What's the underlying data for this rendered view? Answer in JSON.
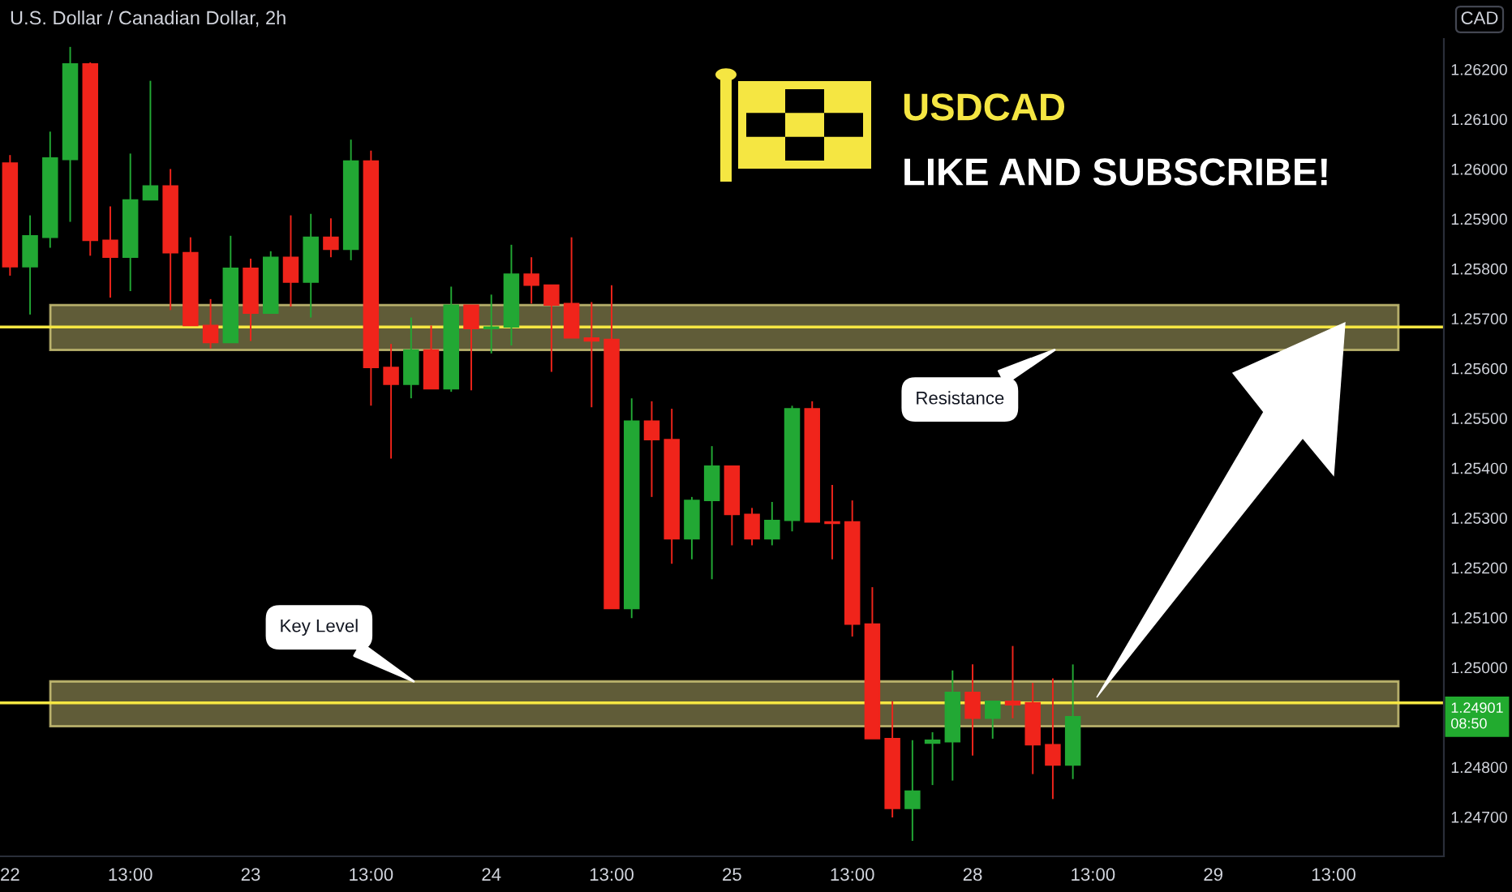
{
  "chart_data": {
    "type": "candlestick",
    "title": "U.S. Dollar / Canadian Dollar, 2h",
    "subtitle": "USDCAD",
    "ylabel": "CAD",
    "categories": [
      "22",
      null,
      null,
      null,
      null,
      null,
      "13:00",
      null,
      null,
      null,
      null,
      null,
      "23",
      null,
      null,
      null,
      null,
      null,
      "13:00",
      null,
      null,
      null,
      null,
      null,
      "24",
      null,
      null,
      null,
      null,
      null,
      "13:00",
      null,
      null,
      null,
      null,
      null,
      "25",
      null,
      null,
      null,
      null,
      null,
      "13:00",
      null,
      null,
      null,
      null,
      null,
      "28",
      null,
      null,
      null,
      null,
      null,
      "13:00",
      null,
      null,
      null,
      null,
      null,
      "29",
      null,
      null,
      null,
      null,
      null,
      "13:00",
      null,
      null,
      null,
      null,
      null
    ],
    "ohlc": [
      [
        1.26012,
        1.26028,
        1.25786,
        1.25804
      ],
      [
        1.25804,
        1.25907,
        1.25708,
        1.25866
      ],
      [
        1.25863,
        1.26075,
        1.25842,
        1.26022
      ],
      [
        1.26019,
        1.26245,
        1.25894,
        1.26211
      ],
      [
        1.26211,
        1.26214,
        1.25826,
        1.25857
      ],
      [
        1.25857,
        1.25925,
        1.25742,
        1.25823
      ],
      [
        1.25823,
        1.26031,
        1.25755,
        1.25938
      ],
      [
        1.25938,
        1.26177,
        1.25938,
        1.25966
      ],
      [
        1.25966,
        1.26,
        1.25717,
        1.25832
      ],
      [
        1.25832,
        1.25863,
        1.25686,
        1.25686
      ],
      [
        1.25686,
        1.25739,
        1.2564,
        1.25652
      ],
      [
        1.25652,
        1.25866,
        1.25652,
        1.25801
      ],
      [
        1.25801,
        1.2582,
        1.25655,
        1.25711
      ],
      [
        1.25711,
        1.25835,
        1.25711,
        1.25823
      ],
      [
        1.25823,
        1.25907,
        1.25724,
        1.25773
      ],
      [
        1.25773,
        1.2591,
        1.25702,
        1.25863
      ],
      [
        1.25863,
        1.25901,
        1.25823,
        1.25839
      ],
      [
        1.25839,
        1.26059,
        1.25817,
        1.26016
      ],
      [
        1.26016,
        1.26037,
        1.25525,
        1.25602
      ],
      [
        1.25602,
        1.25649,
        1.25419,
        1.25568
      ],
      [
        1.25568,
        1.25702,
        1.2554,
        1.25637
      ],
      [
        1.25637,
        1.25686,
        1.25559,
        1.25559
      ],
      [
        1.25559,
        1.25764,
        1.25553,
        1.25727
      ],
      [
        1.25727,
        1.25727,
        1.25556,
        1.2568
      ],
      [
        1.2568,
        1.25748,
        1.2563,
        1.25683
      ],
      [
        1.25683,
        1.25848,
        1.25646,
        1.25789
      ],
      [
        1.25789,
        1.25823,
        1.2573,
        1.25767
      ],
      [
        1.25767,
        1.25767,
        1.25593,
        1.25727
      ],
      [
        1.2573,
        1.25863,
        1.25661,
        1.25661
      ],
      [
        1.25661,
        1.25733,
        1.25522,
        1.25655
      ],
      [
        1.25658,
        1.25767,
        1.25118,
        1.25118
      ],
      [
        1.25118,
        1.2554,
        1.25099,
        1.25494
      ],
      [
        1.25494,
        1.25534,
        1.25342,
        1.25457
      ],
      [
        1.25457,
        1.25519,
        1.25208,
        1.25258
      ],
      [
        1.25258,
        1.25342,
        1.25217,
        1.25335
      ],
      [
        1.25335,
        1.25444,
        1.25177,
        1.25404
      ],
      [
        1.25404,
        1.25404,
        1.25245,
        1.25307
      ],
      [
        1.25307,
        1.2532,
        1.25245,
        1.25258
      ],
      [
        1.25258,
        1.25332,
        1.25245,
        1.25295
      ],
      [
        1.25295,
        1.25525,
        1.25273,
        1.25519
      ],
      [
        1.25519,
        1.25534,
        1.25292,
        1.25292
      ],
      [
        1.25292,
        1.25366,
        1.25217,
        1.25289
      ],
      [
        1.25292,
        1.25335,
        1.25062,
        1.25087
      ],
      [
        1.25087,
        1.25161,
        1.24857,
        1.24857
      ],
      [
        1.24857,
        1.24932,
        1.24699,
        1.24717
      ],
      [
        1.24717,
        1.24854,
        1.24652,
        1.24752
      ],
      [
        1.24848,
        1.2487,
        1.24764,
        1.24854
      ],
      [
        1.24851,
        1.24994,
        1.24773,
        1.2495
      ],
      [
        1.2495,
        1.25006,
        1.24823,
        1.24898
      ],
      [
        1.24898,
        1.24932,
        1.24857,
        1.24932
      ],
      [
        1.24932,
        1.25043,
        1.24898,
        1.24925
      ],
      [
        1.24929,
        1.24969,
        1.24786,
        1.24845
      ],
      [
        1.24845,
        1.24978,
        1.24736,
        1.24804
      ],
      [
        1.24804,
        1.25006,
        1.24776,
        1.24901
      ],
      null,
      null,
      null,
      null,
      null,
      null,
      null,
      null,
      null,
      null,
      null,
      null,
      null,
      null,
      null,
      null,
      null,
      null
    ],
    "colors": [
      "#f0241b",
      "#22a834",
      "#22a834",
      "#22a834",
      "#f0241b",
      "#f0241b",
      "#22a834",
      "#22a834",
      "#f0241b",
      "#f0241b",
      "#f0241b",
      "#22a834",
      "#f0241b",
      "#22a834",
      "#f0241b",
      "#22a834",
      "#f0241b",
      "#22a834",
      "#f0241b",
      "#f0241b",
      "#22a834",
      "#f0241b",
      "#22a834",
      "#f0241b",
      "#22a834",
      "#22a834",
      "#f0241b",
      "#f0241b",
      "#f0241b",
      "#f0241b",
      "#f0241b",
      "#22a834",
      "#f0241b",
      "#f0241b",
      "#22a834",
      "#22a834",
      "#f0241b",
      "#f0241b",
      "#22a834",
      "#22a834",
      "#f0241b",
      "#f0241b",
      "#f0241b",
      "#f0241b",
      "#f0241b",
      "#22a834",
      "#22a834",
      "#22a834",
      "#f0241b",
      "#22a834",
      "#f0241b",
      "#f0241b",
      "#f0241b",
      "#22a834",
      null,
      null,
      null,
      null,
      null,
      null,
      null,
      null,
      null,
      null,
      null,
      null,
      null,
      null,
      null,
      null,
      null,
      null
    ],
    "ylim": [
      1.24621,
      1.26261
    ],
    "yticks": [
      {
        "value": 1.247,
        "label": "1.24700"
      },
      {
        "value": 1.248,
        "label": "1.24800"
      },
      {
        "value": 1.25,
        "label": "1.25000"
      },
      {
        "value": 1.251,
        "label": "1.25100"
      },
      {
        "value": 1.252,
        "label": "1.25200"
      },
      {
        "value": 1.253,
        "label": "1.25300"
      },
      {
        "value": 1.254,
        "label": "1.25400"
      },
      {
        "value": 1.255,
        "label": "1.25500"
      },
      {
        "value": 1.256,
        "label": "1.25600"
      },
      {
        "value": 1.257,
        "label": "1.25700"
      },
      {
        "value": 1.258,
        "label": "1.25800"
      },
      {
        "value": 1.259,
        "label": "1.25900"
      },
      {
        "value": 1.26,
        "label": "1.26000"
      },
      {
        "value": 1.261,
        "label": "1.26100"
      },
      {
        "value": 1.262,
        "label": "1.26200"
      }
    ],
    "ref_lines": [
      {
        "axis": "y",
        "value": 1.25683,
        "color": "#f5e642"
      },
      {
        "axis": "y",
        "value": 1.24929,
        "color": "#f5e642"
      }
    ],
    "bands": [
      {
        "axis": "y",
        "from": 1.25637,
        "to": 1.25727,
        "color": "#f0e68c",
        "label": "Resistance"
      },
      {
        "axis": "y",
        "from": 1.24882,
        "to": 1.24972,
        "color": "#f0e68c",
        "label": "Key Level"
      }
    ],
    "annotations": [
      "LIKE AND SUBSCRIBE!",
      "1.24901\n08:50"
    ]
  }
}
